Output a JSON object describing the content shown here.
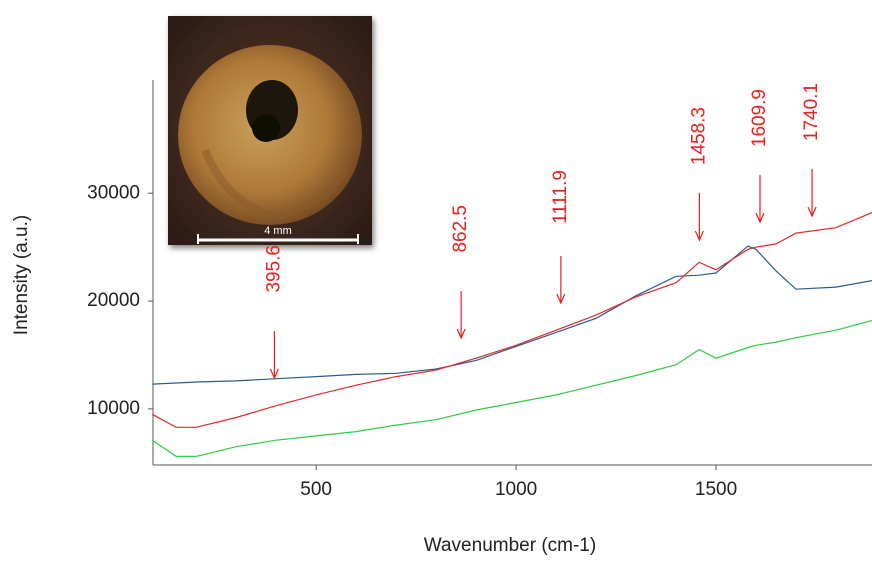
{
  "chart_data": {
    "type": "line",
    "x_label": "Wavenumber (cm-1)",
    "y_label": "Intensity (a.u.)",
    "x": [
      90,
      150,
      200,
      300,
      400,
      500,
      600,
      700,
      800,
      900,
      1000,
      1100,
      1200,
      1300,
      1400,
      1458,
      1500,
      1580,
      1600,
      1650,
      1700,
      1800,
      1890
    ],
    "series": [
      {
        "color": "#2b5d8c",
        "values": [
          12300,
          12400,
          12500,
          12600,
          12800,
          13000,
          13200,
          13300,
          13700,
          14500,
          15800,
          17100,
          18400,
          20500,
          22300,
          22400,
          22600,
          25100,
          24800,
          22800,
          21100,
          21300,
          21900
        ]
      },
      {
        "color": "#e02a2a",
        "values": [
          9500,
          8300,
          8300,
          9200,
          10300,
          11300,
          12200,
          13000,
          13600,
          14700,
          15900,
          17300,
          18700,
          20400,
          21700,
          23600,
          22900,
          24800,
          25000,
          25300,
          26300,
          26800,
          28200
        ]
      },
      {
        "color": "#2ecc40",
        "values": [
          7100,
          5600,
          5600,
          6500,
          7100,
          7500,
          7900,
          8500,
          9000,
          9900,
          10600,
          11300,
          12200,
          13100,
          14100,
          15500,
          14700,
          15700,
          15900,
          16200,
          16600,
          17300,
          18200
        ]
      }
    ],
    "peaks": [
      395.6,
      862.5,
      1111.9,
      1458.3,
      1609.9,
      1740.1
    ],
    "peak_color": "#e8201e",
    "xlim": [
      92,
      1890
    ],
    "xticks": [
      500,
      1000,
      1500
    ],
    "ylim": [
      4800,
      40500
    ],
    "yticks": [
      10000,
      20000,
      30000
    ],
    "grid": false,
    "inset_scale_label": "4 mm"
  }
}
